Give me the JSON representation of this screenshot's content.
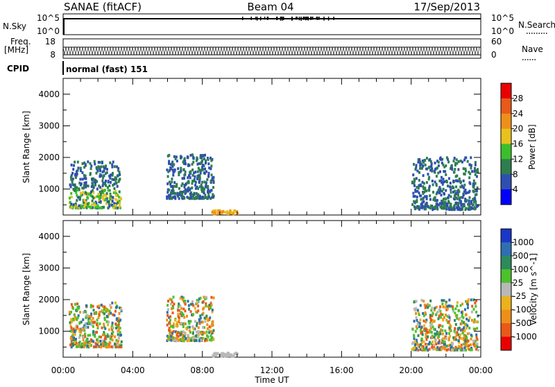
{
  "header": {
    "station": "SANAE (fitACF)",
    "beam": "Beam 04",
    "date": "17/Sep/2013"
  },
  "top_panels": {
    "nsky_label": "N.Sky",
    "nsearch_label": "N.Search",
    "nsky_ticks": [
      "10^5",
      "10^0"
    ],
    "freq_label": "Freq.",
    "freq_unit": "[MHz]",
    "freq_ticks": [
      "18",
      "8"
    ],
    "nave_label": "Nave",
    "nave_ticks": [
      "60",
      "0"
    ],
    "cpid_label": "CPID",
    "cpid_value": "normal (fast) 151"
  },
  "chart_data": [
    {
      "type": "heatmap",
      "quantity": "power",
      "ylabel": "Slant Range [km]",
      "xlabel": "",
      "ylim": [
        180,
        4500
      ],
      "yticks": [
        "1000",
        "2000",
        "3000",
        "4000"
      ],
      "colorbar_label": "Power [dB]",
      "colorbar_ticks": [
        "4",
        "8",
        "12",
        "16",
        "20",
        "24",
        "28"
      ],
      "colorbar_colors": [
        "#0000ff",
        "#2f4fb0",
        "#2e7d4f",
        "#3bbf2c",
        "#e8c21c",
        "#ee8f1a",
        "#e8591a",
        "#ea0000"
      ],
      "scatter_regions": [
        {
          "x_start_h": 0.3,
          "x_end_h": 3.3,
          "y_min_km": 400,
          "y_max_km": 1900,
          "level": "high"
        },
        {
          "x_start_h": 5.9,
          "x_end_h": 8.6,
          "y_min_km": 700,
          "y_max_km": 2100,
          "level": "low"
        },
        {
          "x_start_h": 8.5,
          "x_end_h": 10.0,
          "y_min_km": 180,
          "y_max_km": 320,
          "level": "mid"
        },
        {
          "x_start_h": 20.0,
          "x_end_h": 23.8,
          "y_min_km": 350,
          "y_max_km": 2000,
          "level": "low"
        }
      ]
    },
    {
      "type": "heatmap",
      "quantity": "velocity",
      "ylabel": "Slant Range [km]",
      "xlabel": "Time UT",
      "ylim": [
        180,
        4500
      ],
      "yticks": [
        "1000",
        "2000",
        "3000",
        "4000"
      ],
      "xticks": [
        "00:00",
        "04:00",
        "08:00",
        "12:00",
        "16:00",
        "20:00",
        "00:00"
      ],
      "colorbar_label": "Velocity [m s^-1]",
      "colorbar_ticks": [
        "1000",
        "500",
        "100",
        "25",
        "-25",
        "-100",
        "-500",
        "-1000"
      ],
      "colorbar_colors": [
        "#1a37c8",
        "#2f6fb0",
        "#2e8a5b",
        "#4cc22c",
        "#b8b8b8",
        "#eab21c",
        "#ee8f1a",
        "#e8591a",
        "#ea0000"
      ],
      "scatter_regions": [
        {
          "x_start_h": 0.3,
          "x_end_h": 3.3,
          "y_min_km": 500,
          "y_max_km": 1900,
          "level": "mixed"
        },
        {
          "x_start_h": 5.9,
          "x_end_h": 8.6,
          "y_min_km": 700,
          "y_max_km": 2100,
          "level": "mixed"
        },
        {
          "x_start_h": 8.5,
          "x_end_h": 10.0,
          "y_min_km": 180,
          "y_max_km": 320,
          "level": "grey"
        },
        {
          "x_start_h": 20.0,
          "x_end_h": 23.8,
          "y_min_km": 400,
          "y_max_km": 2000,
          "level": "mixed"
        }
      ]
    }
  ]
}
